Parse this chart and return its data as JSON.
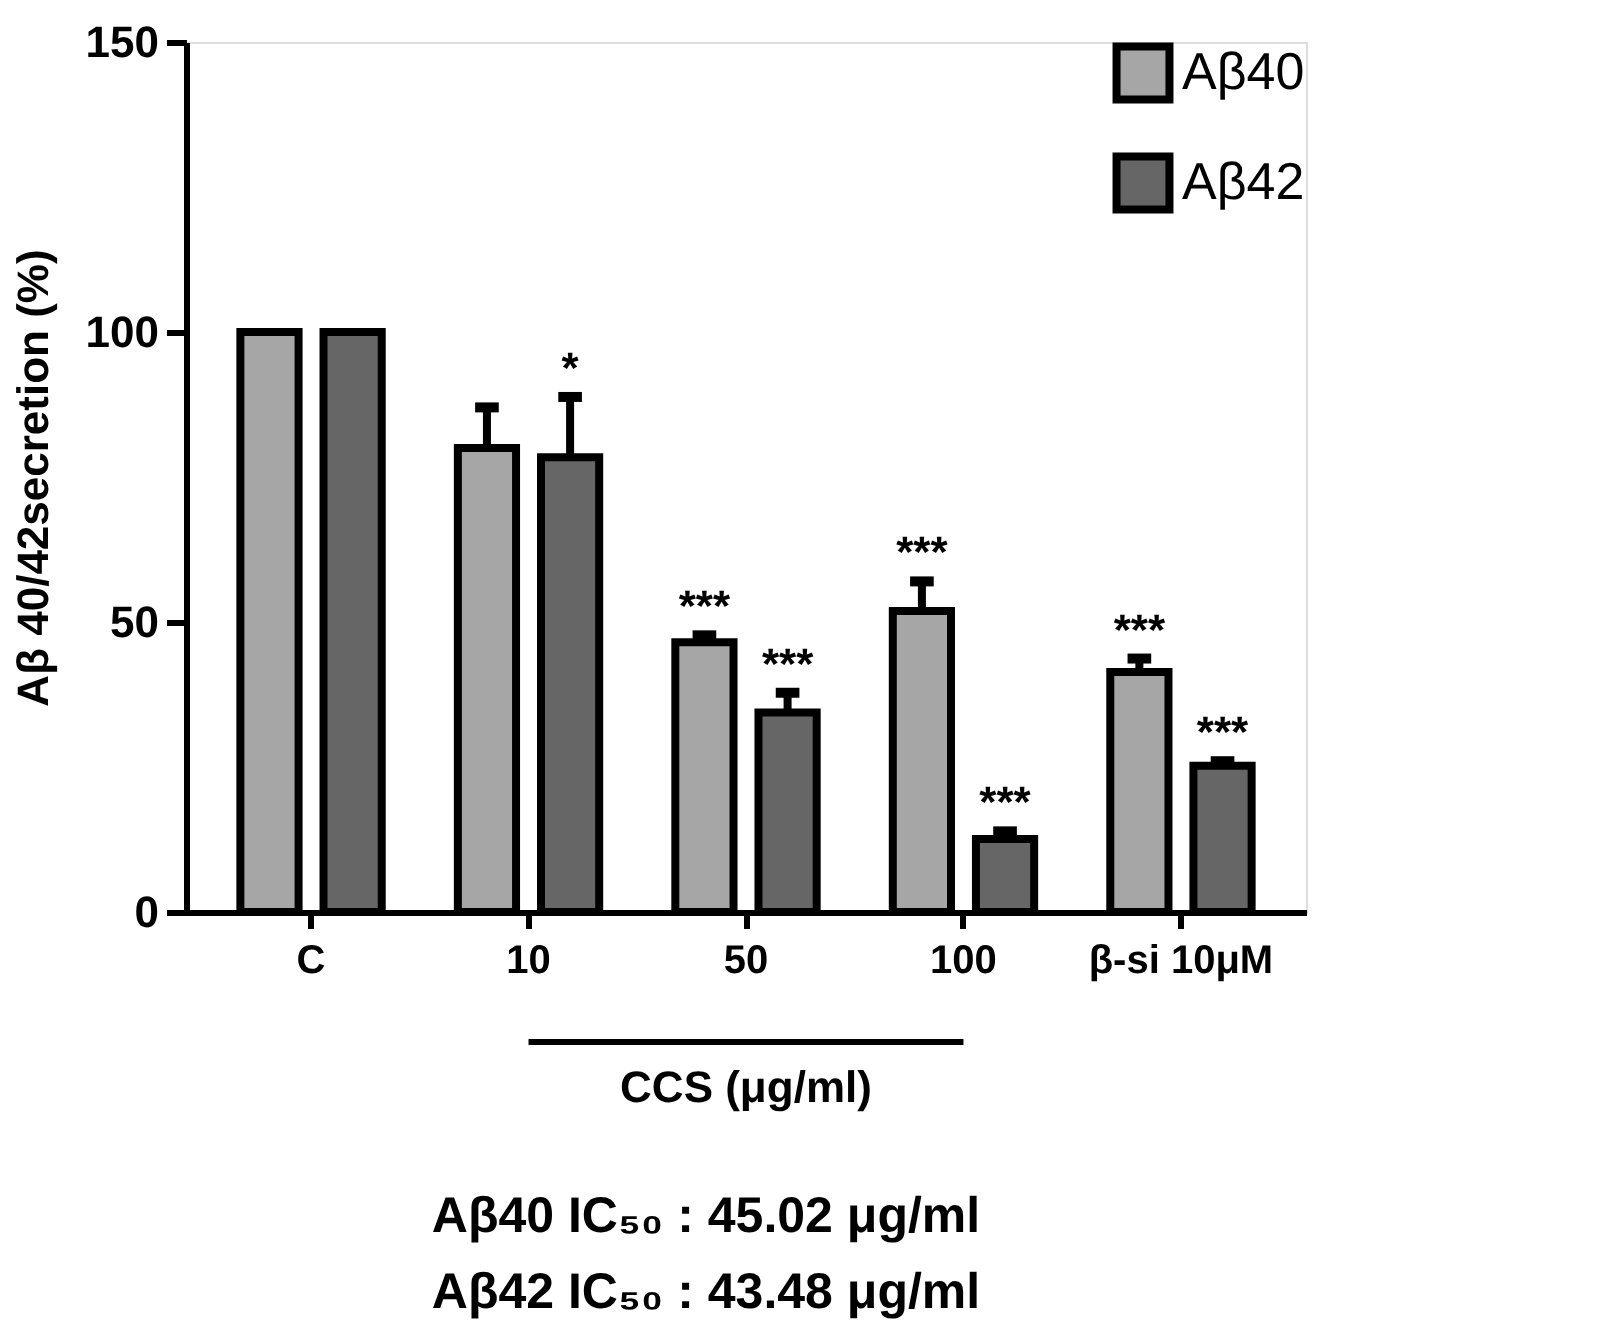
{
  "chart_data": {
    "type": "bar",
    "ylabel": "Aβ  40/42secretion (%)",
    "xlabel": "CCS (μg/ml)",
    "categories": [
      "C",
      "10",
      "50",
      "100",
      "β-si 10μM"
    ],
    "series": [
      {
        "name": "Aβ40",
        "color": "#a6a6a6",
        "values": [
          100,
          80,
          46.5,
          51.9,
          41.4
        ],
        "errors": [
          null,
          [
            80,
            87
          ],
          [
            46.5,
            47.7
          ],
          [
            51.9,
            57
          ],
          [
            41.4,
            43.7
          ]
        ],
        "value_labels": [
          null,
          null,
          "***",
          "***",
          "***"
        ]
      },
      {
        "name": "Aβ42",
        "color": "#666666",
        "values": [
          100,
          78.4,
          34.4,
          12.6,
          25.2
        ],
        "errors": [
          null,
          [
            78.4,
            88.8
          ],
          [
            34.4,
            37.8
          ],
          [
            12.6,
            13.9
          ],
          [
            25.2,
            26
          ]
        ],
        "value_labels": [
          null,
          "*",
          "***",
          "***",
          "***"
        ]
      }
    ],
    "ylim": [
      0,
      150
    ],
    "yticks": [
      0,
      50,
      100,
      150
    ],
    "grid": false,
    "legend": "top right",
    "annotations": [
      "Aβ40 IC₅₀ : 45.02 μg/ml",
      "Aβ42 IC₅₀ : 43.48 μg/ml"
    ]
  }
}
